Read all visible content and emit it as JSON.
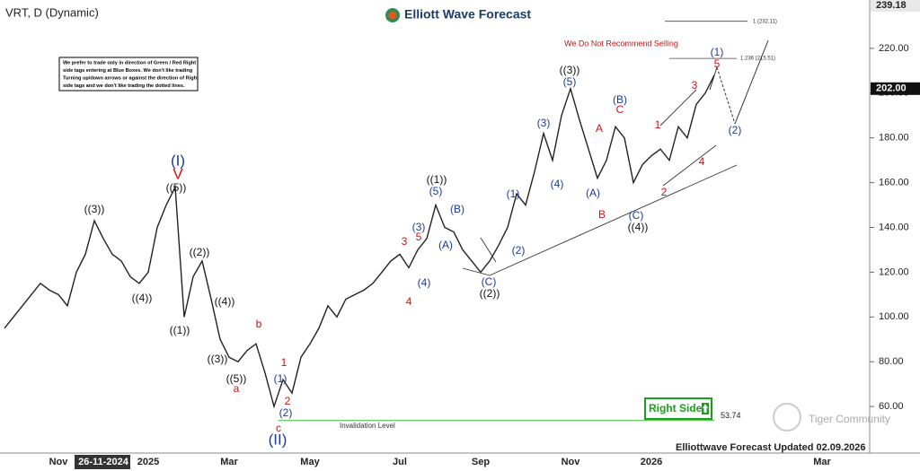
{
  "chart_data": {
    "type": "line",
    "title": "VRT, D (Dynamic)",
    "brand": "Elliott Wave Forecast",
    "warning": "We Do Not Recommend Selling",
    "notice": [
      "We prefer to trade only in direction of Green / Red Right",
      "side tags entering at Blue Boxes. We don't like trading",
      "Turning up/down arrows or against the direction of Right",
      "side tags and we don't like trading the dotted lines."
    ],
    "categories": [
      null,
      null,
      null,
      null,
      null,
      null,
      "Nov",
      null,
      null,
      null,
      null,
      "26-11-2024",
      null,
      null,
      null,
      null,
      "2025",
      null,
      null,
      null,
      null,
      null,
      null,
      null,
      null,
      "Mar",
      null,
      null,
      null,
      null,
      null,
      null,
      null,
      null,
      "May",
      null,
      null,
      null,
      null,
      null,
      null,
      null,
      null,
      null,
      "Jul",
      null,
      null,
      null,
      null,
      null,
      null,
      null,
      null,
      "Sep",
      null,
      null,
      null,
      null,
      null,
      null,
      null,
      null,
      null,
      "Nov",
      null,
      null,
      null,
      null,
      null,
      null,
      null,
      null,
      "2026",
      null,
      null,
      null,
      null,
      null,
      null,
      null,
      null,
      null,
      null,
      null,
      null,
      null,
      null,
      null,
      null,
      null,
      null,
      "Mar",
      null,
      null,
      null,
      null,
      null
    ],
    "values": [
      95,
      100,
      105,
      110,
      115,
      112,
      110,
      105,
      120,
      128,
      143,
      135,
      128,
      125,
      118,
      115,
      120,
      140,
      150,
      158,
      100,
      118,
      125,
      108,
      90,
      82,
      80,
      85,
      88,
      75,
      60,
      72,
      66,
      82,
      88,
      95,
      105,
      100,
      108,
      110,
      112,
      115,
      120,
      125,
      128,
      122,
      130,
      135,
      150,
      140,
      138,
      130,
      125,
      120,
      125,
      132,
      140,
      155,
      150,
      165,
      182,
      170,
      190,
      202,
      188,
      175,
      162,
      170,
      185,
      180,
      160,
      168,
      172,
      175,
      170,
      185,
      180,
      195,
      200,
      208,
      null,
      null,
      null,
      null,
      null,
      null,
      null,
      null,
      null,
      null,
      null,
      null,
      null,
      null,
      null,
      null,
      null
    ],
    "color": "#222222",
    "ylim": [
      39.2,
      241.6
    ],
    "yticks": [
      {
        "value": 60,
        "label": "60.00"
      },
      {
        "value": 80,
        "label": "80.00"
      },
      {
        "value": 100,
        "label": "100.00"
      },
      {
        "value": 120,
        "label": "120.00"
      },
      {
        "value": 140,
        "label": "140.00"
      },
      {
        "value": 160,
        "label": "160.00"
      },
      {
        "value": 180,
        "label": "180.00"
      },
      {
        "value": 200,
        "label": "200.00"
      },
      {
        "value": 220,
        "label": "220.00"
      }
    ],
    "grid": false,
    "high_price": {
      "value": 239.18,
      "label": "239.18"
    },
    "current_price": {
      "value": 202,
      "label": "202.00"
    },
    "invalidation": {
      "value": 53.74,
      "label": "53.74",
      "text": "Invalidation Level"
    },
    "fib_levels": [
      {
        "value": 232.11,
        "label": "1 (232.11)"
      },
      {
        "value": 215.51,
        "label": "1.236 (215.51)"
      }
    ],
    "wave_labels": [
      "((3))",
      "((4))",
      "(I)",
      "V",
      "((5))",
      "((2))",
      "((1))",
      "((4))",
      "((3))",
      "((5))",
      "a",
      "b",
      "1",
      "(1)",
      "2",
      "(2)",
      "c",
      "(II)",
      "3",
      "5",
      "(3)",
      "4",
      "(4)",
      "(A)",
      "((1))",
      "(5)",
      "(B)",
      "(C)",
      "((2))",
      "(1)",
      "(2)",
      "(3)",
      "(4)",
      "((3))",
      "(5)",
      "A",
      "(A)",
      "B",
      "(B)",
      "C",
      "(C)",
      "((4))",
      "1",
      "2",
      "3",
      "4",
      "(1)",
      "5",
      "(2)"
    ],
    "right_side": "Right Side",
    "footer": "Elliottwave Forecast Updated 02.09.2026",
    "community": "Tiger Community"
  }
}
